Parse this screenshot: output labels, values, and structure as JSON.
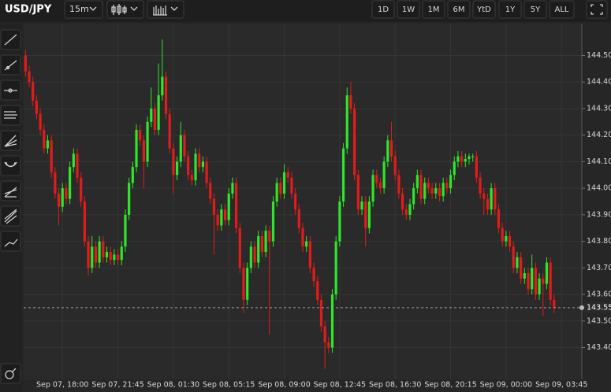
{
  "toolbar": {
    "symbol": "USD/JPY",
    "interval": "15m",
    "ranges": [
      "1D",
      "1W",
      "1M",
      "6M",
      "YtD",
      "1Y",
      "5Y",
      "ALL"
    ]
  },
  "chart_data": {
    "type": "candlestick",
    "up_color": "#2ee62a",
    "down_color": "#e31b1b",
    "grid": true,
    "categories": [
      null,
      null,
      null,
      null,
      null,
      null,
      null,
      null,
      null,
      null,
      "Sep 07, 18:00",
      null,
      null,
      null,
      null,
      null,
      null,
      null,
      null,
      null,
      null,
      null,
      null,
      null,
      null,
      "Sep 07, 21:45",
      null,
      null,
      null,
      null,
      null,
      null,
      null,
      null,
      null,
      null,
      null,
      null,
      null,
      null,
      "Sep 08, 01:30",
      null,
      null,
      null,
      null,
      null,
      null,
      null,
      null,
      null,
      null,
      null,
      null,
      null,
      null,
      "Sep 08, 05:15",
      null,
      null,
      null,
      null,
      null,
      null,
      null,
      null,
      null,
      null,
      null,
      null,
      null,
      null,
      "Sep 08, 09:00",
      null,
      null,
      null,
      null,
      null,
      null,
      null,
      null,
      null,
      null,
      null,
      null,
      null,
      null,
      "Sep 08, 12:45",
      null,
      null,
      null,
      null,
      null,
      null,
      null,
      null,
      null,
      null,
      null,
      null,
      null,
      null,
      "Sep 08, 16:30",
      null,
      null,
      null,
      null,
      null,
      null,
      null,
      null,
      null,
      null,
      null,
      null,
      null,
      null,
      "Sep 08, 20:15",
      null,
      null,
      null,
      null,
      null,
      null,
      null,
      null,
      null,
      null,
      null,
      null,
      null,
      null,
      "Sep 09, 00:00",
      null,
      null,
      null,
      null,
      null,
      null,
      null,
      null,
      null,
      null,
      null,
      null,
      null,
      null,
      "Sep 09, 03:45"
    ],
    "open": [
      144.5,
      144.44,
      144.4,
      144.33,
      144.28,
      144.22,
      144.15,
      144.18,
      144.06,
      143.98,
      143.93,
      144.0,
      143.96,
      144.08,
      144.13,
      144.04,
      143.95,
      143.8,
      143.7,
      143.78,
      143.72,
      143.8,
      143.74,
      143.76,
      143.73,
      143.75,
      143.73,
      143.78,
      143.9,
      144.02,
      144.08,
      144.22,
      144.18,
      144.1,
      144.25,
      144.3,
      144.22,
      144.35,
      144.42,
      144.28,
      144.15,
      144.05,
      144.1,
      144.2,
      144.12,
      144.05,
      144.03,
      144.13,
      144.08,
      144.1,
      144.02,
      143.96,
      143.9,
      143.86,
      143.92,
      143.88,
      143.98,
      144.02,
      143.85,
      143.7,
      143.58,
      143.7,
      143.78,
      143.72,
      143.82,
      143.76,
      143.84,
      143.8,
      143.95,
      144.02,
      143.98,
      144.06,
      144.04,
      143.98,
      143.92,
      143.85,
      143.78,
      143.8,
      143.7,
      143.65,
      143.58,
      143.48,
      143.42,
      143.4,
      143.6,
      143.8,
      143.95,
      144.15,
      144.35,
      144.3,
      144.05,
      143.92,
      143.95,
      143.85,
      143.95,
      144.05,
      144.02,
      144.0,
      144.1,
      144.18,
      144.12,
      144.05,
      143.98,
      143.92,
      143.9,
      143.94,
      144.0,
      144.05,
      143.96,
      144.02,
      144.0,
      143.98,
      144.0,
      143.97,
      144.02,
      144.0,
      144.05,
      144.1,
      144.12,
      144.1,
      144.11,
      144.12,
      144.12,
      144.04,
      143.98,
      143.96,
      143.92,
      144.0,
      143.92,
      143.85,
      143.8,
      143.82,
      143.78,
      143.7,
      143.74,
      143.66,
      143.68,
      143.62,
      143.7,
      143.6,
      143.66,
      143.64,
      143.72,
      143.58,
      null,
      null
    ],
    "high": [
      144.52,
      144.46,
      144.42,
      144.35,
      144.3,
      144.24,
      144.2,
      144.2,
      144.08,
      144.0,
      144.02,
      144.02,
      144.1,
      144.15,
      144.15,
      144.06,
      143.97,
      143.82,
      143.82,
      143.8,
      143.82,
      143.82,
      143.78,
      143.78,
      143.77,
      143.77,
      143.8,
      143.92,
      144.04,
      144.1,
      144.24,
      144.24,
      144.2,
      144.27,
      144.38,
      144.32,
      144.47,
      144.56,
      144.44,
      144.3,
      144.17,
      144.12,
      144.25,
      144.22,
      144.14,
      144.07,
      144.15,
      144.15,
      144.12,
      144.12,
      144.04,
      143.98,
      143.92,
      143.94,
      143.94,
      144.0,
      144.04,
      144.04,
      143.87,
      143.72,
      143.72,
      143.8,
      143.8,
      143.84,
      143.84,
      143.86,
      143.86,
      143.97,
      144.04,
      144.04,
      144.09,
      144.08,
      144.06,
      144.0,
      143.94,
      143.87,
      143.82,
      143.82,
      143.72,
      143.67,
      143.6,
      143.5,
      143.44,
      143.62,
      143.82,
      143.97,
      144.17,
      144.38,
      144.4,
      144.32,
      144.07,
      143.97,
      143.97,
      143.97,
      144.07,
      144.07,
      144.04,
      144.12,
      144.2,
      144.25,
      144.14,
      144.07,
      144.0,
      143.94,
      143.96,
      144.02,
      144.07,
      144.07,
      144.04,
      144.04,
      144.02,
      144.02,
      144.02,
      144.04,
      144.04,
      144.07,
      144.12,
      144.14,
      144.14,
      144.13,
      144.13,
      144.13,
      144.14,
      144.06,
      144.0,
      143.98,
      144.02,
      144.02,
      143.94,
      143.87,
      143.84,
      143.84,
      143.8,
      143.76,
      143.76,
      143.7,
      143.7,
      143.75,
      143.72,
      143.68,
      143.68,
      143.74,
      143.74,
      143.6,
      null,
      null
    ],
    "low": [
      144.42,
      144.38,
      144.31,
      144.26,
      144.2,
      144.13,
      144.13,
      144.04,
      143.96,
      143.86,
      143.91,
      143.94,
      143.94,
      144.06,
      144.02,
      143.93,
      143.78,
      143.67,
      143.68,
      143.7,
      143.7,
      143.72,
      143.72,
      143.71,
      143.71,
      143.71,
      143.71,
      143.76,
      143.88,
      144.0,
      144.06,
      144.16,
      144.0,
      144.08,
      144.23,
      144.2,
      144.2,
      144.33,
      144.26,
      144.13,
      143.98,
      144.03,
      144.08,
      144.1,
      144.03,
      144.01,
      144.01,
      144.06,
      144.06,
      144.0,
      143.94,
      143.75,
      143.84,
      143.84,
      143.86,
      143.86,
      143.96,
      143.83,
      143.68,
      143.53,
      143.56,
      143.68,
      143.7,
      143.7,
      143.74,
      143.74,
      143.45,
      143.78,
      143.93,
      143.96,
      143.96,
      144.02,
      143.96,
      143.9,
      143.83,
      143.76,
      143.76,
      143.68,
      143.63,
      143.56,
      143.46,
      143.32,
      143.38,
      143.38,
      143.58,
      143.78,
      143.93,
      144.13,
      144.28,
      144.03,
      143.9,
      143.9,
      143.78,
      143.83,
      143.93,
      144.0,
      143.98,
      143.98,
      144.08,
      144.1,
      144.03,
      143.96,
      143.9,
      143.88,
      143.88,
      143.92,
      143.98,
      143.94,
      143.94,
      143.98,
      143.96,
      143.96,
      143.95,
      143.95,
      143.98,
      143.98,
      144.03,
      144.08,
      144.08,
      144.08,
      144.09,
      144.1,
      144.02,
      143.96,
      143.9,
      143.9,
      143.9,
      143.9,
      143.83,
      143.78,
      143.78,
      143.76,
      143.68,
      143.68,
      143.64,
      143.64,
      143.6,
      143.6,
      143.58,
      143.58,
      143.52,
      143.62,
      143.56,
      143.53,
      null,
      null
    ],
    "close": [
      144.44,
      144.4,
      144.33,
      144.28,
      144.22,
      144.15,
      144.18,
      144.06,
      143.98,
      143.93,
      144.0,
      143.96,
      144.08,
      144.13,
      144.04,
      143.95,
      143.8,
      143.7,
      143.78,
      143.72,
      143.8,
      143.74,
      143.76,
      143.73,
      143.75,
      143.73,
      143.78,
      143.9,
      144.02,
      144.08,
      144.22,
      144.18,
      144.1,
      144.25,
      144.3,
      144.22,
      144.35,
      144.42,
      144.28,
      144.15,
      144.05,
      144.1,
      144.2,
      144.12,
      144.05,
      144.03,
      144.13,
      144.08,
      144.1,
      144.02,
      143.96,
      143.9,
      143.86,
      143.92,
      143.88,
      143.98,
      144.02,
      143.85,
      143.7,
      143.58,
      143.7,
      143.78,
      143.72,
      143.82,
      143.76,
      143.84,
      143.8,
      143.95,
      144.02,
      143.98,
      144.06,
      144.04,
      143.98,
      143.92,
      143.85,
      143.78,
      143.8,
      143.7,
      143.65,
      143.58,
      143.48,
      143.42,
      143.4,
      143.6,
      143.8,
      143.95,
      144.15,
      144.35,
      144.3,
      144.05,
      143.92,
      143.95,
      143.85,
      143.95,
      144.05,
      144.02,
      144.0,
      144.1,
      144.18,
      144.12,
      144.05,
      143.98,
      143.92,
      143.9,
      143.94,
      144.0,
      144.05,
      143.96,
      144.02,
      144.0,
      143.98,
      144.0,
      143.97,
      144.02,
      144.0,
      144.05,
      144.1,
      144.12,
      144.1,
      144.11,
      144.12,
      144.12,
      144.04,
      143.98,
      143.96,
      143.92,
      144.0,
      143.92,
      143.85,
      143.8,
      143.82,
      143.78,
      143.7,
      143.74,
      143.66,
      143.68,
      143.62,
      143.7,
      143.6,
      143.66,
      143.64,
      143.72,
      143.58,
      143.55,
      null,
      null
    ],
    "ylim": [
      143.28,
      144.62
    ],
    "yticks": [
      {
        "value": 143.4,
        "label": "143.40"
      },
      {
        "value": 143.5,
        "label": "143.50"
      },
      {
        "value": 143.6,
        "label": "143.60"
      },
      {
        "value": 143.7,
        "label": "143.70"
      },
      {
        "value": 143.8,
        "label": "143.80"
      },
      {
        "value": 143.9,
        "label": "143.90"
      },
      {
        "value": 144.0,
        "label": "144.00"
      },
      {
        "value": 144.1,
        "label": "144.10"
      },
      {
        "value": 144.2,
        "label": "144.20"
      },
      {
        "value": 144.3,
        "label": "144.30"
      },
      {
        "value": 144.4,
        "label": "144.40"
      },
      {
        "value": 144.5,
        "label": "144.50"
      }
    ],
    "last_price": {
      "value": 143.55,
      "label": "143.55"
    }
  }
}
